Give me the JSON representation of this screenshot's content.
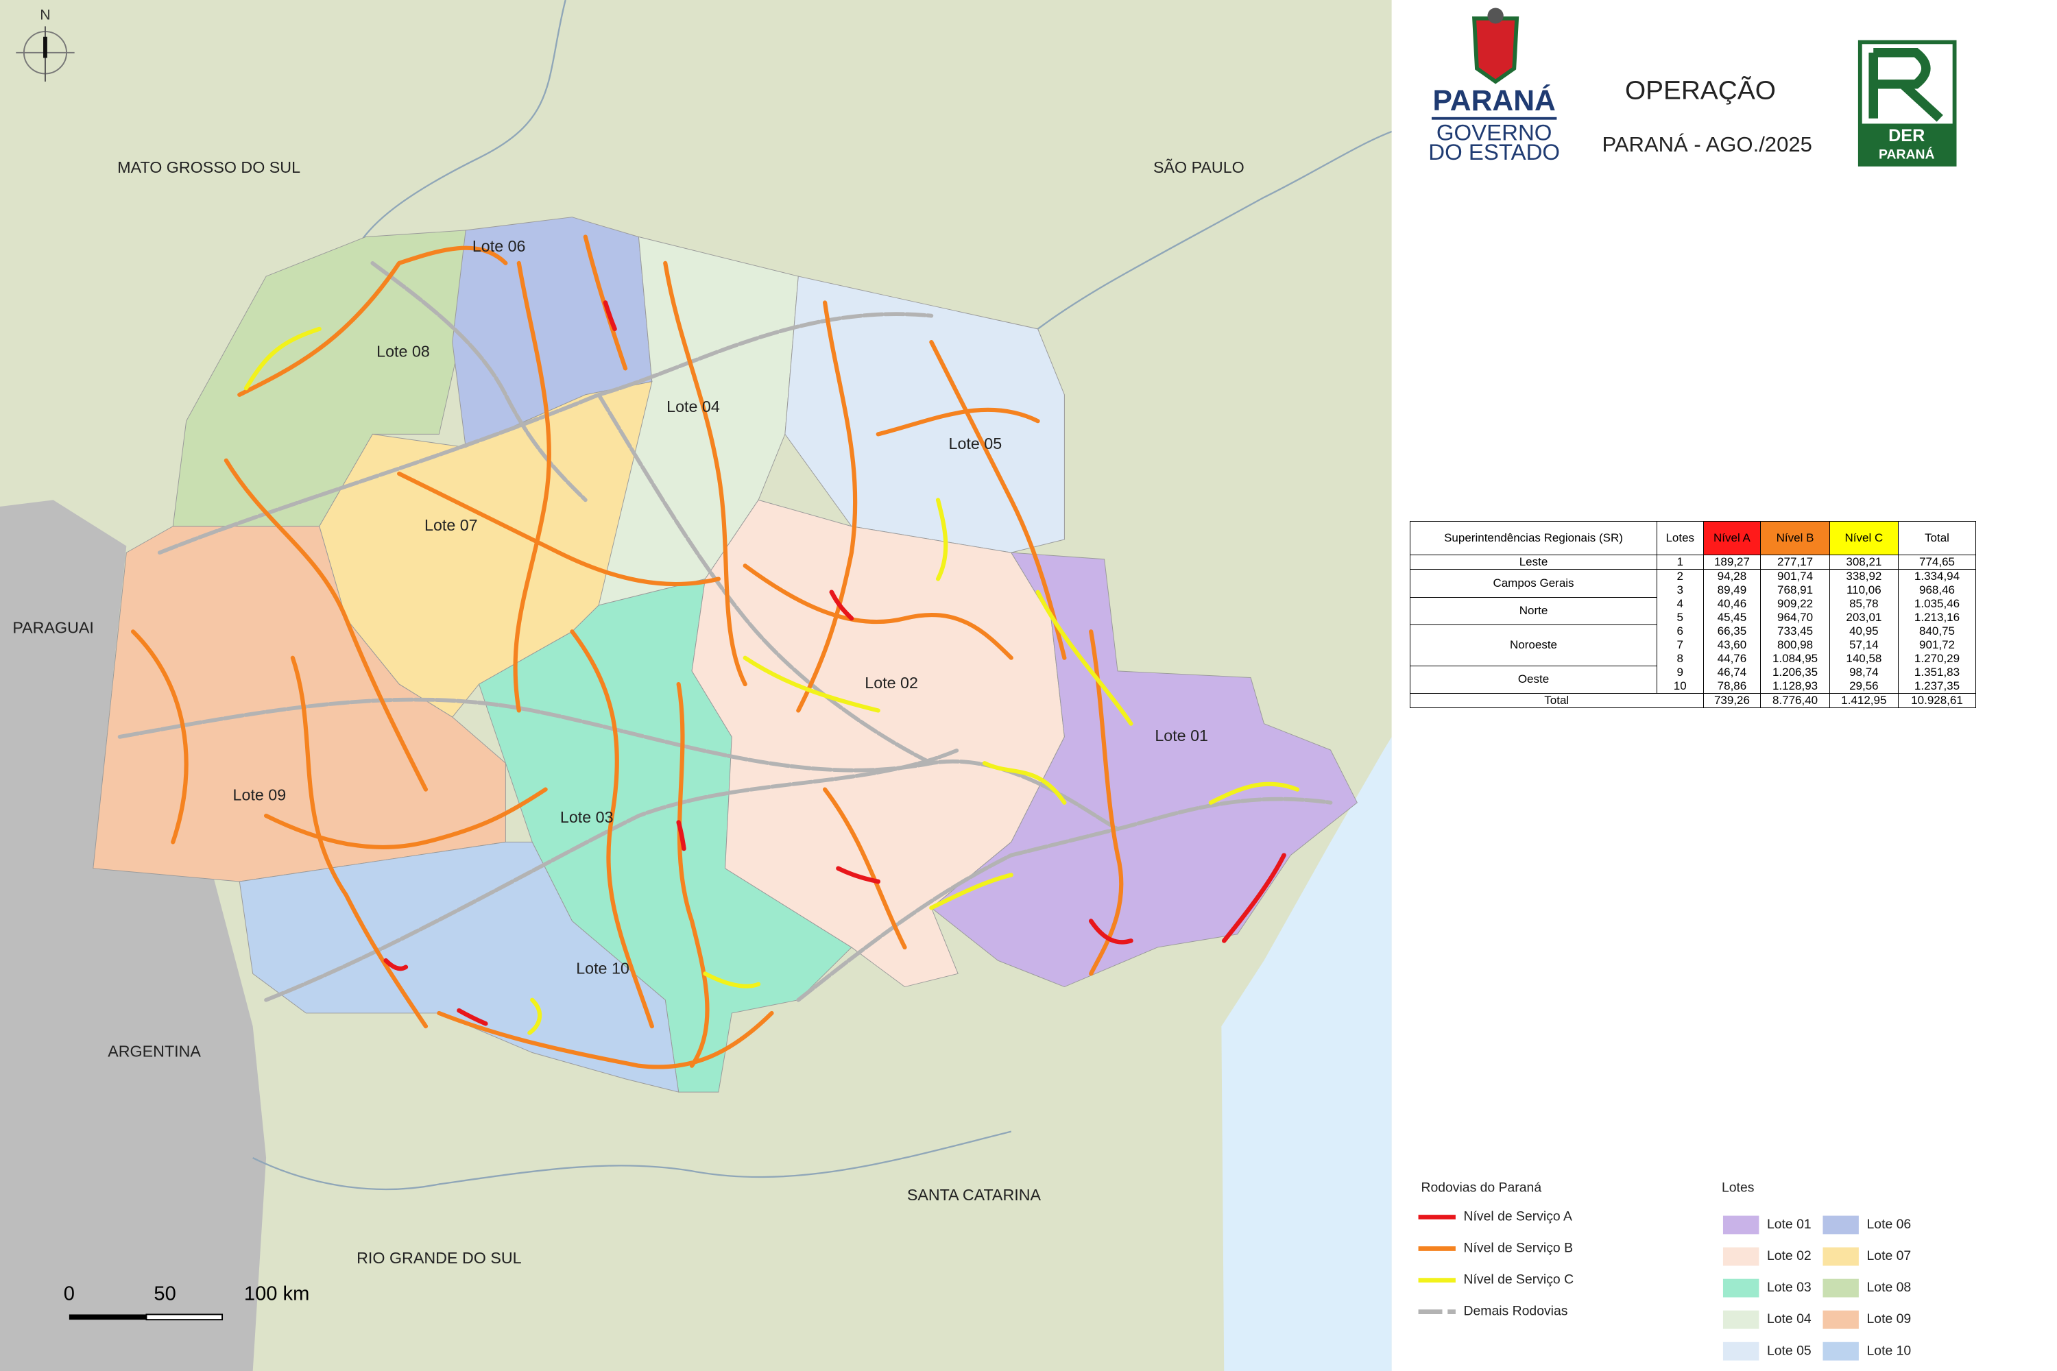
{
  "header": {
    "title": "OPERAÇÃO",
    "subtitle": "PARANÁ -  AGO./2025",
    "gov_logo": [
      "PARANÁ",
      "GOVERNO",
      "DO ESTADO"
    ],
    "der_logo": [
      "DER",
      "PARANÁ"
    ]
  },
  "map": {
    "compass": "N",
    "neighbors": [
      "MATO GROSSO DO SUL",
      "SÃO PAULO",
      "PARAGUAI",
      "ARGENTINA",
      "SANTA CATARINA",
      "RIO GRANDE DO SUL"
    ],
    "lote_labels": [
      "Lote 01",
      "Lote 02",
      "Lote 03",
      "Lote 04",
      "Lote 05",
      "Lote 06",
      "Lote 07",
      "Lote 08",
      "Lote 09",
      "Lote 10"
    ],
    "scale": [
      "0",
      "50",
      "100 km"
    ]
  },
  "table": {
    "headers": [
      "Superintendências Regionais (SR)",
      "Lotes",
      "Nível A",
      "Nível B",
      "Nível C",
      "Total"
    ],
    "groups": [
      {
        "name": "Leste",
        "rows": [
          [
            "1",
            "189,27",
            "277,17",
            "308,21",
            "774,65"
          ]
        ]
      },
      {
        "name": "Campos Gerais",
        "rows": [
          [
            "2",
            "94,28",
            "901,74",
            "338,92",
            "1.334,94"
          ],
          [
            "3",
            "89,49",
            "768,91",
            "110,06",
            "968,46"
          ]
        ]
      },
      {
        "name": "Norte",
        "rows": [
          [
            "4",
            "40,46",
            "909,22",
            "85,78",
            "1.035,46"
          ],
          [
            "5",
            "45,45",
            "964,70",
            "203,01",
            "1.213,16"
          ]
        ]
      },
      {
        "name": "Noroeste",
        "rows": [
          [
            "6",
            "66,35",
            "733,45",
            "40,95",
            "840,75"
          ],
          [
            "7",
            "43,60",
            "800,98",
            "57,14",
            "901,72"
          ],
          [
            "8",
            "44,76",
            "1.084,95",
            "140,58",
            "1.270,29"
          ]
        ]
      },
      {
        "name": "Oeste",
        "rows": [
          [
            "9",
            "46,74",
            "1.206,35",
            "98,74",
            "1.351,83"
          ],
          [
            "10",
            "78,86",
            "1.128,93",
            "29,56",
            "1.237,35"
          ]
        ]
      }
    ],
    "total": [
      "Total",
      "739,26",
      "8.776,40",
      "1.412,95",
      "10.928,61"
    ]
  },
  "legend_roads": {
    "title": "Rodovias do Paraná",
    "items": [
      {
        "label": "Nível de Serviço A",
        "color": "#e8161b"
      },
      {
        "label": "Nível de Serviço B",
        "color": "#f5821f"
      },
      {
        "label": "Nível de Serviço C",
        "color": "#f2f21a"
      },
      {
        "label": "Demais Rodovias",
        "color": "#b3b3b3"
      }
    ]
  },
  "legend_lotes": {
    "title": "Lotes",
    "items": [
      {
        "label": "Lote 01",
        "color": "#c9b3e8"
      },
      {
        "label": "Lote 02",
        "color": "#fbe4d8"
      },
      {
        "label": "Lote 03",
        "color": "#9deacd"
      },
      {
        "label": "Lote 04",
        "color": "#e2eedb"
      },
      {
        "label": "Lote 05",
        "color": "#dde9f6"
      },
      {
        "label": "Lote 06",
        "color": "#b4c2e8"
      },
      {
        "label": "Lote 07",
        "color": "#fbe3a0"
      },
      {
        "label": "Lote 08",
        "color": "#c9dfb1"
      },
      {
        "label": "Lote 09",
        "color": "#f6c7a6"
      },
      {
        "label": "Lote 10",
        "color": "#bcd3ef"
      }
    ]
  }
}
